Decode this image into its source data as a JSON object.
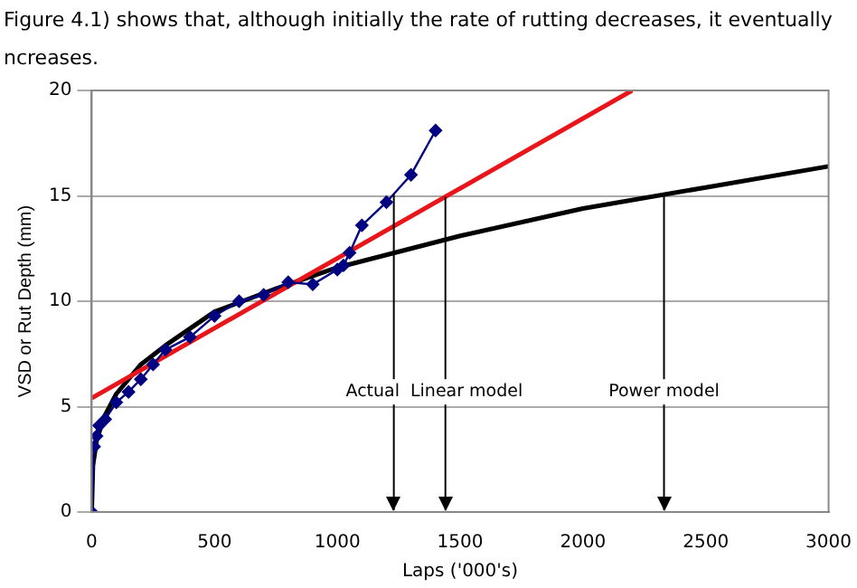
{
  "chart_data": {
    "type": "line",
    "xlabel": "Laps ('000's)",
    "ylabel": "VSD or Rut Depth (mm)",
    "annotations": [
      "Figure 4.1) shows that, although initially the rate of rutting decreases, it eventually",
      "ncreases."
    ],
    "ref_lines": [
      {
        "axis": "x",
        "value": 1230,
        "label": "Actual"
      },
      {
        "axis": "x",
        "value": 1440,
        "label": "Linear model"
      },
      {
        "axis": "x",
        "value": 2330,
        "label": "Power model"
      }
    ],
    "series": [
      {
        "color": "#000080",
        "marker": "diamond",
        "x": [
          0,
          10,
          20,
          30,
          55,
          100,
          150,
          200,
          250,
          300,
          400,
          500,
          600,
          700,
          800,
          900,
          1000,
          1025,
          1050,
          1100,
          1200,
          1300,
          1400
        ],
        "values": [
          0,
          3.1,
          3.6,
          4.1,
          4.4,
          5.2,
          5.7,
          6.3,
          7.0,
          7.7,
          8.3,
          9.3,
          10.0,
          10.3,
          10.9,
          10.8,
          11.5,
          11.7,
          12.3,
          13.6,
          14.7,
          16.0,
          18.1
        ]
      },
      {
        "color": "#e8161b",
        "marker": "none",
        "x": [
          0,
          2200
        ],
        "values": [
          5.4,
          20
        ]
      },
      {
        "color": "#000000",
        "marker": "none",
        "x": [
          0,
          5,
          20,
          50,
          100,
          200,
          300,
          500,
          750,
          1000,
          1500,
          2000,
          2500,
          3000
        ],
        "values": [
          0,
          2.2,
          3.4,
          4.5,
          5.6,
          7.0,
          7.9,
          9.5,
          10.6,
          11.6,
          13.1,
          14.4,
          15.4,
          16.4
        ]
      }
    ],
    "xlim": [
      0,
      3000
    ],
    "xticks": [
      0,
      500,
      1000,
      1500,
      2000,
      2500,
      3000
    ],
    "ylim": [
      0,
      20
    ],
    "yticks": [
      0,
      5,
      10,
      15,
      20
    ],
    "grid": "y",
    "legend": false
  }
}
